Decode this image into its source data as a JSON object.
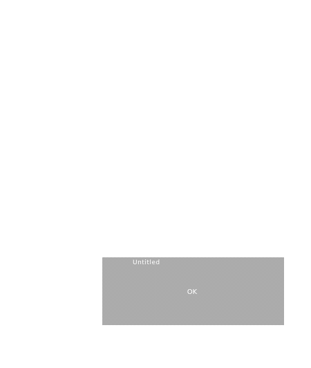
{
  "panel": {
    "title": "Untitled",
    "button_label": "OK"
  },
  "colors": {
    "background": "#ffffff",
    "panel_light": "#bdbdbd",
    "panel_dark": "#9a9a9a",
    "panel_text": "#ffffff"
  }
}
